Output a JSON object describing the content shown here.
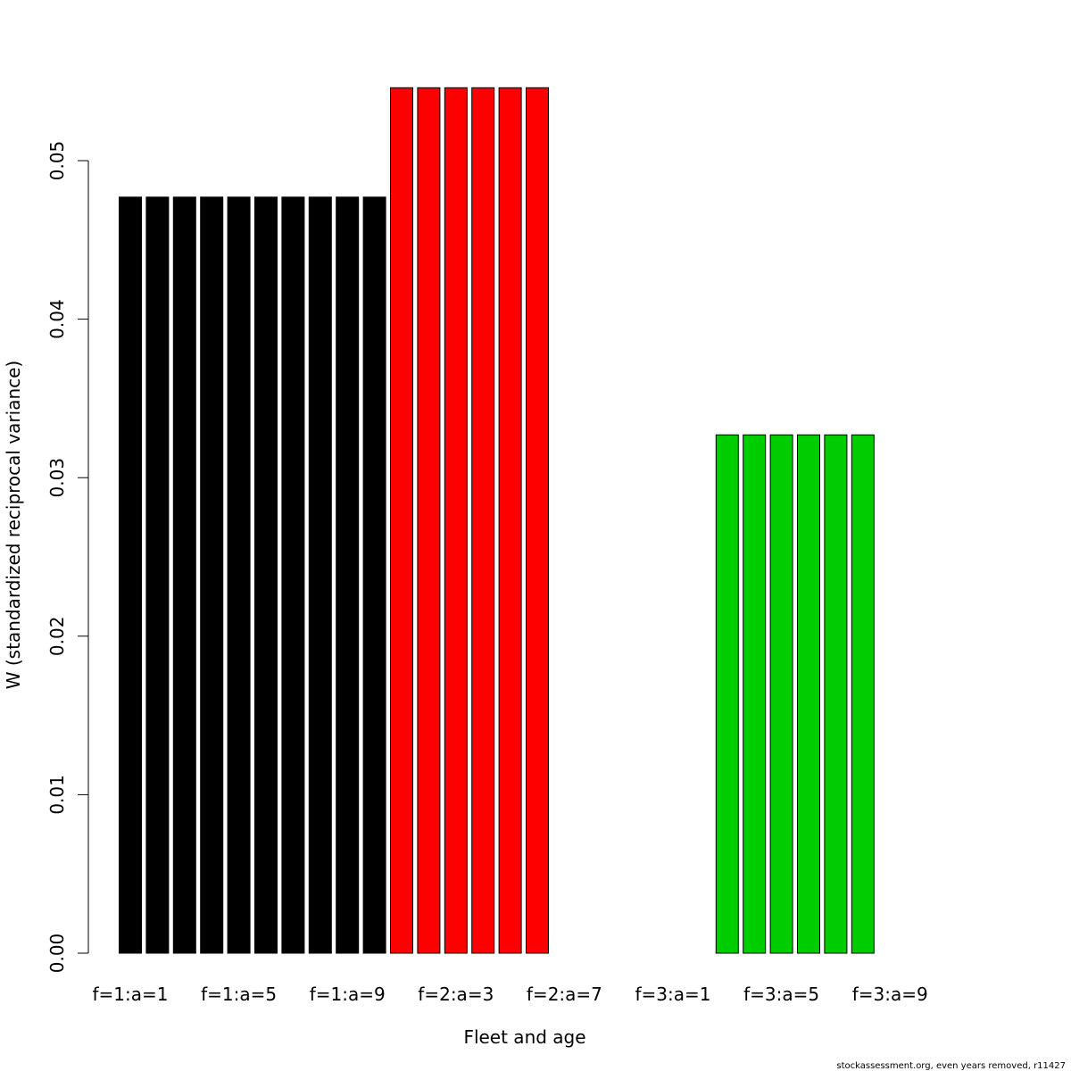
{
  "chart_data": {
    "type": "bar",
    "title": "",
    "xlabel": "Fleet and age",
    "ylabel": "W (standardized reciprocal variance)",
    "ylim": [
      0,
      0.055
    ],
    "yticks": [
      "0.00",
      "0.01",
      "0.02",
      "0.03",
      "0.04",
      "0.05"
    ],
    "categories": [
      "f=1:a=1",
      "f=1:a=2",
      "f=1:a=3",
      "f=1:a=4",
      "f=1:a=5",
      "f=1:a=6",
      "f=1:a=7",
      "f=1:a=8",
      "f=1:a=9",
      "f=1:a=10",
      "f=2:a=1",
      "f=2:a=2",
      "f=2:a=3",
      "f=2:a=4",
      "f=2:a=5",
      "f=2:a=6",
      "f=2:a=7",
      "f=2:a=8",
      "f=2:a=9",
      "f=2:a=10",
      "f=3:a=1",
      "f=3:a=2",
      "f=3:a=3",
      "f=3:a=4",
      "f=3:a=5",
      "f=3:a=6",
      "f=3:a=7",
      "f=3:a=8",
      "f=3:a=9",
      "f=3:a=10"
    ],
    "values": [
      0.0477,
      0.0477,
      0.0477,
      0.0477,
      0.0477,
      0.0477,
      0.0477,
      0.0477,
      0.0477,
      0.0477,
      0.0546,
      0.0546,
      0.0546,
      0.0546,
      0.0546,
      0.0546,
      null,
      null,
      null,
      null,
      null,
      null,
      0.0327,
      0.0327,
      0.0327,
      0.0327,
      0.0327,
      0.0327,
      null,
      null
    ],
    "fleet_colors": [
      "#000000",
      "#ff0000",
      "#00cd00"
    ],
    "xtick_labels": [
      "f=1:a=1",
      "f=1:a=5",
      "f=1:a=9",
      "f=2:a=3",
      "f=2:a=7",
      "f=3:a=1",
      "f=3:a=5",
      "f=3:a=9"
    ],
    "xtick_indices": [
      0,
      4,
      8,
      12,
      16,
      20,
      24,
      28
    ],
    "grid": false,
    "legend": "none"
  },
  "footer": "stockassessment.org, even years removed, r11427"
}
